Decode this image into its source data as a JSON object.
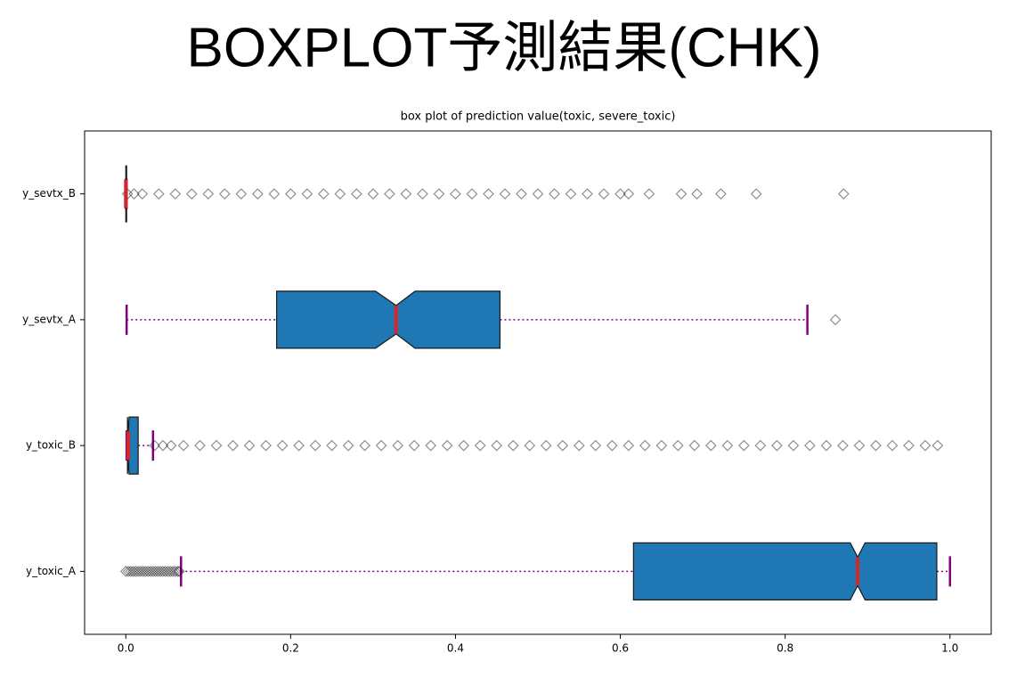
{
  "heading": "BOXPLOT予測結果(CHK)",
  "chart_data": {
    "type": "boxplot",
    "title": "box plot of prediction value(toxic, severe_toxic)",
    "orientation": "horizontal",
    "notch": true,
    "box_color": "#1f77b4",
    "median_color": "#d62728",
    "whisker_color": "#800080",
    "flier_color": "#000000",
    "categories": [
      "y_toxic_A",
      "y_toxic_B",
      "y_sevtx_A",
      "y_sevtx_B"
    ],
    "boxes": [
      {
        "whislo": 0.067,
        "q1": 0.616,
        "med": 0.888,
        "q3": 0.984,
        "whishi": 1.0,
        "cilo": 0.879,
        "cihi": 0.897,
        "fliers": [
          0.0,
          0.003,
          0.006,
          0.009,
          0.012,
          0.015,
          0.018,
          0.021,
          0.024,
          0.027,
          0.03,
          0.033,
          0.036,
          0.039,
          0.042,
          0.045,
          0.048,
          0.051,
          0.054,
          0.057,
          0.06,
          0.063,
          0.065
        ]
      },
      {
        "whislo": 0.001,
        "q1": 0.002,
        "med": 0.003,
        "q3": 0.015,
        "whishi": 0.033,
        "cilo": 0.002,
        "cihi": 0.004,
        "fliers": [
          0.035,
          0.045,
          0.055,
          0.07,
          0.09,
          0.11,
          0.13,
          0.15,
          0.17,
          0.19,
          0.21,
          0.23,
          0.25,
          0.27,
          0.29,
          0.31,
          0.33,
          0.35,
          0.37,
          0.39,
          0.41,
          0.43,
          0.45,
          0.47,
          0.49,
          0.51,
          0.53,
          0.55,
          0.57,
          0.59,
          0.61,
          0.63,
          0.65,
          0.67,
          0.69,
          0.71,
          0.73,
          0.75,
          0.77,
          0.79,
          0.81,
          0.83,
          0.85,
          0.87,
          0.89,
          0.91,
          0.93,
          0.95,
          0.97,
          0.985
        ]
      },
      {
        "whislo": 0.001,
        "q1": 0.183,
        "med": 0.328,
        "q3": 0.454,
        "whishi": 0.827,
        "cilo": 0.303,
        "cihi": 0.351,
        "fliers": [
          0.861
        ]
      },
      {
        "whislo": 0.0,
        "q1": 0.0,
        "med": 0.0,
        "q3": 0.001,
        "whishi": 0.001,
        "cilo": 0.0,
        "cihi": 0.001,
        "fliers": [
          0.002,
          0.01,
          0.02,
          0.04,
          0.06,
          0.08,
          0.1,
          0.12,
          0.14,
          0.16,
          0.18,
          0.2,
          0.22,
          0.24,
          0.26,
          0.28,
          0.3,
          0.32,
          0.34,
          0.36,
          0.38,
          0.4,
          0.42,
          0.44,
          0.46,
          0.48,
          0.5,
          0.52,
          0.54,
          0.56,
          0.58,
          0.6,
          0.61,
          0.635,
          0.674,
          0.693,
          0.722,
          0.765,
          0.871
        ]
      }
    ],
    "xlim": [
      -0.05,
      1.05
    ],
    "xticks": [
      {
        "value": 0,
        "label": "0.0"
      },
      0.2,
      0.4,
      0.6,
      0.8,
      {
        "value": 1,
        "label": "1.0"
      }
    ]
  }
}
